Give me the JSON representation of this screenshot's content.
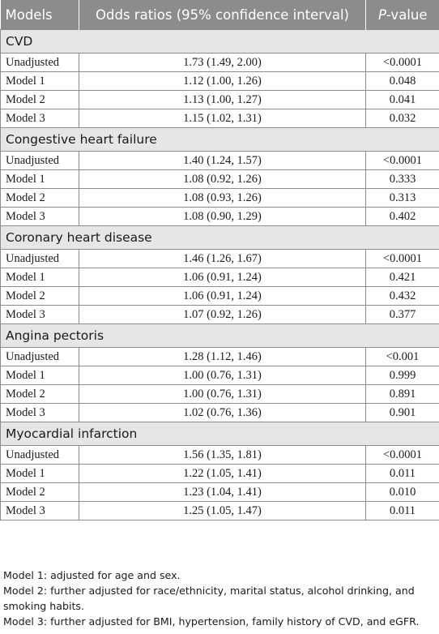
{
  "header": {
    "models": "Models",
    "odds": "Odds ratios (95% confidence interval)",
    "p_italic": "P",
    "p_rest": "-value"
  },
  "sections": [
    {
      "title": "CVD",
      "rows": [
        {
          "model": "Unadjusted",
          "or": "1.73 (1.49, 2.00)",
          "p": "<0.0001"
        },
        {
          "model": "Model 1",
          "or": "1.12 (1.00, 1.26)",
          "p": "0.048"
        },
        {
          "model": "Model 2",
          "or": "1.13 (1.00, 1.27)",
          "p": "0.041"
        },
        {
          "model": "Model 3",
          "or": "1.15 (1.02, 1.31)",
          "p": "0.032"
        }
      ]
    },
    {
      "title": "Congestive heart failure",
      "rows": [
        {
          "model": "Unadjusted",
          "or": "1.40 (1.24, 1.57)",
          "p": "<0.0001"
        },
        {
          "model": "Model 1",
          "or": "1.08 (0.92, 1.26)",
          "p": "0.333"
        },
        {
          "model": "Model 2",
          "or": "1.08 (0.93, 1.26)",
          "p": "0.313"
        },
        {
          "model": "Model 3",
          "or": "1.08 (0.90, 1.29)",
          "p": "0.402"
        }
      ]
    },
    {
      "title": "Coronary heart disease",
      "rows": [
        {
          "model": "Unadjusted",
          "or": "1.46 (1.26, 1.67)",
          "p": "<0.0001"
        },
        {
          "model": "Model 1",
          "or": "1.06 (0.91, 1.24)",
          "p": "0.421"
        },
        {
          "model": "Model 2",
          "or": "1.06 (0.91, 1.24)",
          "p": "0.432"
        },
        {
          "model": "Model 3",
          "or": "1.07 (0.92, 1.26)",
          "p": "0.377"
        }
      ]
    },
    {
      "title": "Angina pectoris",
      "rows": [
        {
          "model": "Unadjusted",
          "or": "1.28 (1.12, 1.46)",
          "p": "<0.001"
        },
        {
          "model": "Model 1",
          "or": "1.00 (0.76, 1.31)",
          "p": "0.999"
        },
        {
          "model": "Model 2",
          "or": "1.00 (0.76, 1.31)",
          "p": "0.891"
        },
        {
          "model": "Model 3",
          "or": "1.02 (0.76, 1.36)",
          "p": "0.901"
        }
      ]
    },
    {
      "title": "Myocardial infarction",
      "rows": [
        {
          "model": "Unadjusted",
          "or": "1.56 (1.35, 1.81)",
          "p": "<0.0001"
        },
        {
          "model": "Model 1",
          "or": "1.22 (1.05, 1.41)",
          "p": "0.011"
        },
        {
          "model": "Model 2",
          "or": "1.23 (1.04, 1.41)",
          "p": "0.010"
        },
        {
          "model": "Model 3",
          "or": "1.25 (1.05, 1.47)",
          "p": "0.011"
        }
      ]
    }
  ],
  "notes": [
    "Model 1: adjusted for age and sex.",
    "Model 2: further adjusted for race/ethnicity, marital status, alcohol drinking, and smoking habits.",
    "Model 3: further adjusted for BMI, hypertension, family history of CVD, and eGFR."
  ]
}
